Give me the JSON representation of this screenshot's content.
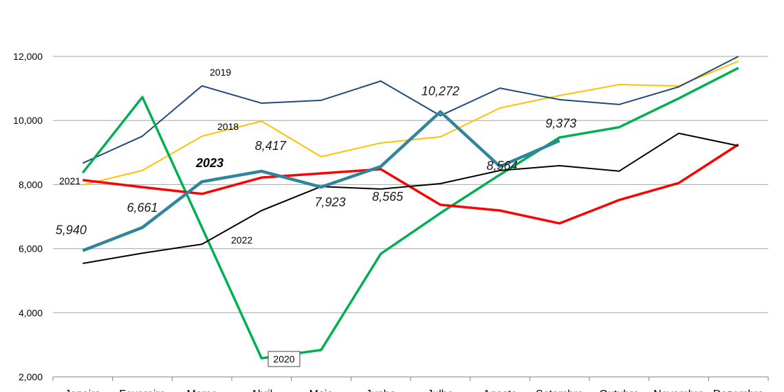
{
  "chart_data": {
    "type": "line",
    "categories": [
      "Janeiro",
      "Fevereiro",
      "Março",
      "Abril",
      "Maio",
      "Junho",
      "Julho",
      "Agosto",
      "Setembro",
      "Outubro",
      "Novembro",
      "Dezembro"
    ],
    "ylim": [
      2000,
      12000
    ],
    "yticks": [
      {
        "value": 2000,
        "label": "2,000"
      },
      {
        "value": 4000,
        "label": "4,000"
      },
      {
        "value": 6000,
        "label": "6,000"
      },
      {
        "value": 8000,
        "label": "8,000"
      },
      {
        "value": 10000,
        "label": "10,000"
      },
      {
        "value": 12000,
        "label": "12,000"
      }
    ],
    "grid": true,
    "series": [
      {
        "name": "2018",
        "color": "#ffc000",
        "values": [
          7990,
          8440,
          9510,
          9980,
          8870,
          9300,
          9490,
          10390,
          10780,
          11120,
          11080,
          11850
        ]
      },
      {
        "name": "2019",
        "color": "#1f497d",
        "values": [
          8670,
          9510,
          11080,
          10540,
          10630,
          11230,
          10150,
          11010,
          10650,
          10500,
          11050,
          12000
        ]
      },
      {
        "name": "2020",
        "color": "#00b050",
        "values": [
          8370,
          10730,
          6660,
          2580,
          2840,
          5840,
          7110,
          8310,
          9470,
          9790,
          10690,
          11640
        ]
      },
      {
        "name": "2021",
        "color": "#ff0000",
        "values": [
          8140,
          7920,
          7710,
          8220,
          8350,
          8480,
          7370,
          7190,
          6790,
          7520,
          8050,
          9250
        ]
      },
      {
        "name": "2022",
        "color": "#000000",
        "values": [
          5540,
          5860,
          6140,
          7190,
          7940,
          7860,
          8030,
          8440,
          8590,
          8420,
          9600,
          9210
        ]
      },
      {
        "name": "2023",
        "color": "#31849b",
        "values": [
          5940,
          6661,
          8090,
          8417,
          7923,
          8565,
          10272,
          8564,
          9373,
          null,
          null,
          null
        ],
        "value_labels": [
          "5,940",
          "6,661",
          null,
          "8,417",
          "7,923",
          "8,565",
          "10,272",
          "8,564",
          "9,373",
          null,
          null,
          null
        ]
      }
    ]
  }
}
